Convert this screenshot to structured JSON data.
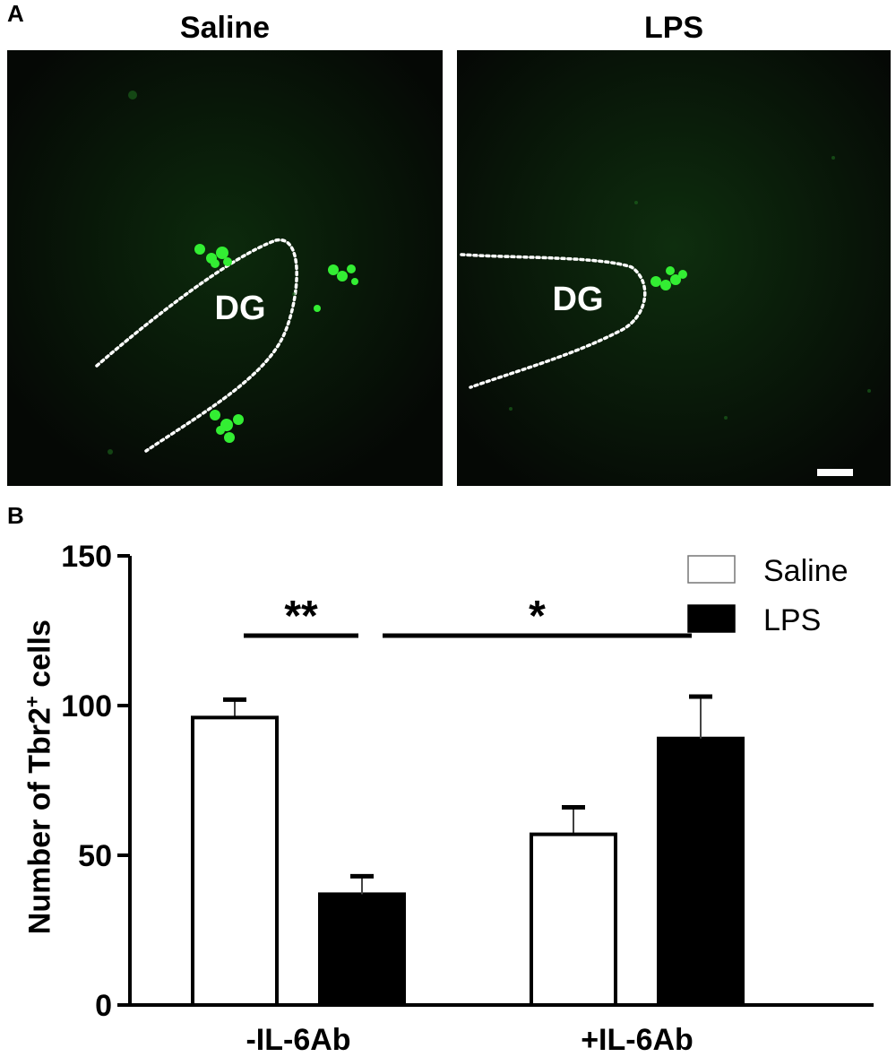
{
  "figure": {
    "panel_a": {
      "letter": "A",
      "images": [
        {
          "title": "Saline",
          "region_label": "DG"
        },
        {
          "title": "LPS",
          "region_label": "DG"
        }
      ]
    },
    "panel_b": {
      "letter": "B"
    }
  },
  "colors": {
    "cell_green": "#33ee33",
    "bar_lps": "#000000",
    "bar_saline": "#ffffff",
    "background": "#050805"
  },
  "chart_data": {
    "type": "bar",
    "categories": [
      "-IL-6Ab",
      "+IL-6Ab"
    ],
    "series": [
      {
        "name": "Saline",
        "values": [
          96,
          57
        ],
        "errors": [
          6,
          9
        ]
      },
      {
        "name": "LPS",
        "values": [
          37,
          89
        ],
        "errors": [
          6,
          14
        ]
      }
    ],
    "ylabel": "Number of Tbr2",
    "ylabel_superscript": "+",
    "ylabel_suffix": " cells",
    "ylim": [
      0,
      150
    ],
    "yticks": [
      0,
      50,
      100,
      150
    ],
    "legend": "top-right",
    "significance": [
      {
        "label": "**",
        "from": "-IL-6Ab Saline",
        "to": "-IL-6Ab LPS"
      },
      {
        "label": "*",
        "from": "-IL-6Ab LPS",
        "to": "+IL-6Ab LPS"
      }
    ]
  }
}
